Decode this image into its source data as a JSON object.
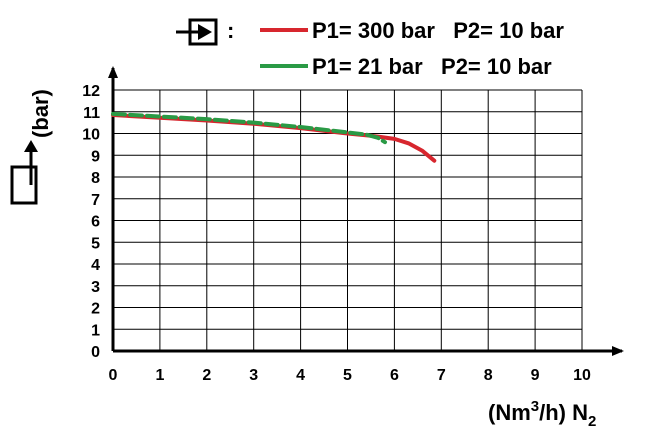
{
  "chart_data": {
    "type": "line",
    "x_ticks": [
      "0",
      "1",
      "2",
      "3",
      "4",
      "5",
      "6",
      "7",
      "8",
      "9",
      "10"
    ],
    "y_ticks": [
      "0",
      "1",
      "2",
      "3",
      "4",
      "5",
      "6",
      "7",
      "8",
      "9",
      "10",
      "11",
      "12"
    ],
    "xlim": [
      0,
      10.5
    ],
    "ylim": [
      0,
      12.6
    ],
    "grid": true,
    "legend_position": "top",
    "legend_prefix": ":",
    "inlet_icon": "inlet-arrow-icon",
    "outlet_icon": "outlet-arrow-icon",
    "xlabel": {
      "pre": "(Nm",
      "sup": "3",
      "mid": "/h) N",
      "sub": "2"
    },
    "ylabel": "(bar)",
    "series": [
      {
        "name": "P1= 300 bar   P2= 10 bar",
        "color": "#d7262e",
        "dashed": false,
        "points": [
          [
            0,
            10.85
          ],
          [
            1,
            10.72
          ],
          [
            2,
            10.6
          ],
          [
            3,
            10.45
          ],
          [
            4,
            10.25
          ],
          [
            5,
            10.0
          ],
          [
            5.5,
            9.9
          ],
          [
            6,
            9.75
          ],
          [
            6.3,
            9.55
          ],
          [
            6.6,
            9.2
          ],
          [
            6.85,
            8.75
          ]
        ]
      },
      {
        "name": "P1= 21 bar   P2= 10 bar",
        "color": "#2a9a45",
        "dashed": true,
        "points": [
          [
            0,
            10.9
          ],
          [
            1,
            10.78
          ],
          [
            2,
            10.66
          ],
          [
            3,
            10.5
          ],
          [
            4,
            10.3
          ],
          [
            5,
            10.05
          ],
          [
            5.4,
            9.95
          ],
          [
            5.65,
            9.8
          ],
          [
            5.8,
            9.6
          ]
        ]
      }
    ]
  }
}
